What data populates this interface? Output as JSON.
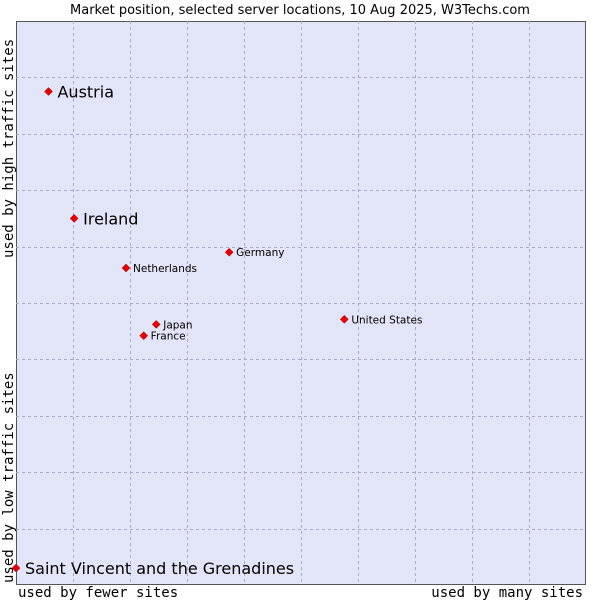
{
  "chart_data": {
    "type": "scatter",
    "title": "Market position, selected server locations, 10 Aug 2025, W3Techs.com",
    "xlabel_left": "used by fewer sites",
    "xlabel_right": "used by many sites",
    "ylabel_top": "used by high traffic sites",
    "ylabel_bottom": "used by low traffic sites",
    "xlim": [
      0,
      100
    ],
    "ylim": [
      0,
      100
    ],
    "grid": true,
    "colors": {
      "marker": "#e60000",
      "plot_bg": "#e2e4f7",
      "grid": "#a9a9c8"
    },
    "points": [
      {
        "label": "Austria",
        "x": 5.7,
        "y": 87.5,
        "emphasis": "large"
      },
      {
        "label": "Ireland",
        "x": 10.2,
        "y": 65.0,
        "emphasis": "large"
      },
      {
        "label": "Germany",
        "x": 37.4,
        "y": 59.0,
        "emphasis": "small"
      },
      {
        "label": "Netherlands",
        "x": 19.3,
        "y": 56.2,
        "emphasis": "small"
      },
      {
        "label": "United States",
        "x": 57.6,
        "y": 47.1,
        "emphasis": "small"
      },
      {
        "label": "Japan",
        "x": 24.6,
        "y": 46.2,
        "emphasis": "small"
      },
      {
        "label": "France",
        "x": 22.4,
        "y": 44.2,
        "emphasis": "small"
      },
      {
        "label": "Saint Vincent and the Grenadines",
        "x": 0.0,
        "y": 3.0,
        "emphasis": "large"
      }
    ]
  }
}
